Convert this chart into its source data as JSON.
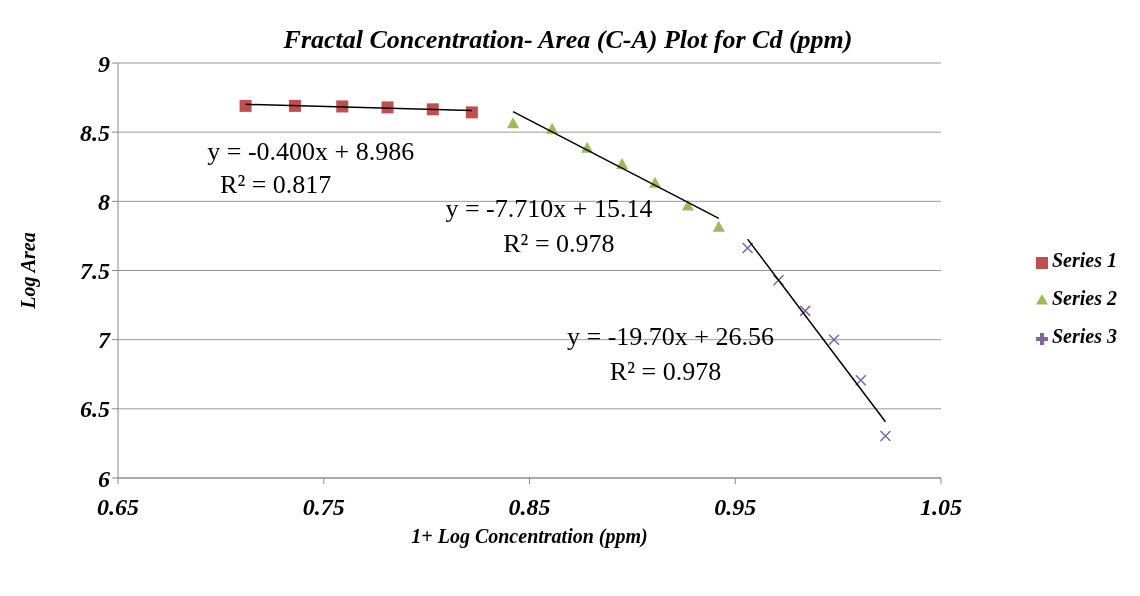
{
  "chart_data": {
    "type": "scatter",
    "title": "Fractal Concentration- Area (C-A) Plot for Cd (ppm)",
    "xlabel": "1+ Log Concentration (ppm)",
    "ylabel": "Log Area",
    "xlim": [
      0.65,
      1.05
    ],
    "xticks": [
      0.65,
      0.75,
      0.85,
      0.95,
      1.05
    ],
    "ylim": [
      6,
      9
    ],
    "yticks": [
      6,
      6.5,
      7,
      7.5,
      8,
      8.5,
      9
    ],
    "grid": "y",
    "legend": "right",
    "series": [
      {
        "name": "Series 1",
        "marker": "square",
        "color": "#c0504d",
        "x": [
          0.712,
          0.736,
          0.759,
          0.781,
          0.803,
          0.822
        ],
        "values": [
          8.69,
          8.69,
          8.686,
          8.679,
          8.665,
          8.643
        ]
      },
      {
        "name": "Series 2",
        "marker": "triangle",
        "color": "#9bbb59",
        "x": [
          0.842,
          0.861,
          0.878,
          0.895,
          0.911,
          0.927,
          0.942
        ],
        "values": [
          8.565,
          8.525,
          8.388,
          8.27,
          8.135,
          7.97,
          7.816
        ]
      },
      {
        "name": "Series 3",
        "marker": "cross",
        "color": "#8064a2",
        "x": [
          0.956,
          0.971,
          0.984,
          0.998,
          1.011,
          1.023
        ],
        "values": [
          7.662,
          7.43,
          7.208,
          7.0,
          6.706,
          6.303
        ]
      },
      {
        "type": "line",
        "color": "#000000",
        "x": [
          0.712,
          0.822
        ],
        "values": [
          8.701,
          8.657
        ]
      },
      {
        "type": "line",
        "color": "#000000",
        "x": [
          0.842,
          0.942
        ],
        "values": [
          8.648,
          7.877
        ]
      },
      {
        "type": "line",
        "color": "#000000",
        "x": [
          0.956,
          1.023
        ],
        "values": [
          7.727,
          6.407
        ]
      }
    ],
    "annotations": [
      "y = -0.400x + 8.986",
      "R² = 0.817",
      "y = -7.710x + 15.14",
      "R² = 0.978",
      "y = -19.70x + 26.56",
      "R² = 0.978"
    ]
  }
}
